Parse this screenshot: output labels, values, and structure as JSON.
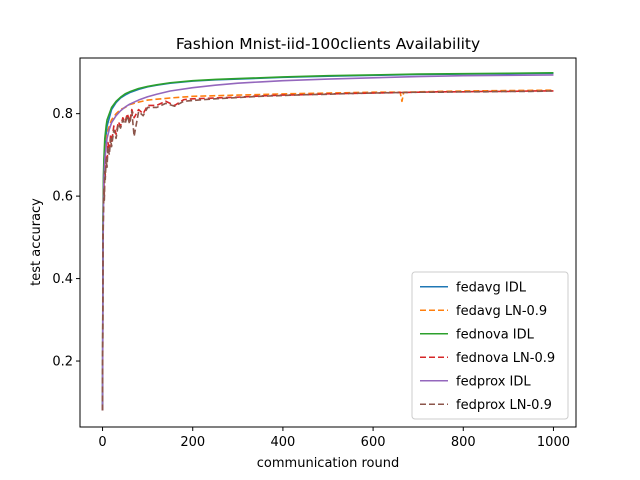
{
  "chart_data": {
    "type": "line",
    "title": "Fashion Mnist-iid-100clients Availability",
    "xlabel": "communication round",
    "ylabel": "test accuracy",
    "xlim": [
      -50,
      1050
    ],
    "ylim": [
      0.04,
      0.935
    ],
    "xticks": [
      0,
      200,
      400,
      600,
      800,
      1000
    ],
    "yticks": [
      0.2,
      0.4,
      0.6,
      0.8
    ],
    "xtick_labels": [
      "0",
      "200",
      "400",
      "600",
      "800",
      "1000"
    ],
    "ytick_labels": [
      "0.2",
      "0.4",
      "0.6",
      "0.8"
    ],
    "grid": false,
    "legend_position": "lower-right",
    "series": [
      {
        "name": "fedavg IDL",
        "color": "#1f77b4",
        "dash": "solid",
        "x": [
          0,
          1,
          2,
          3,
          5,
          8,
          10,
          15,
          20,
          30,
          40,
          50,
          60,
          80,
          100,
          120,
          150,
          200,
          250,
          300,
          350,
          400,
          500,
          600,
          700,
          800,
          900,
          1000
        ],
        "y": [
          0.08,
          0.5,
          0.62,
          0.67,
          0.72,
          0.75,
          0.77,
          0.79,
          0.81,
          0.827,
          0.838,
          0.845,
          0.851,
          0.859,
          0.865,
          0.869,
          0.874,
          0.879,
          0.882,
          0.884,
          0.886,
          0.888,
          0.891,
          0.893,
          0.895,
          0.896,
          0.897,
          0.898
        ]
      },
      {
        "name": "fedavg LN-0.9",
        "color": "#ff7f0e",
        "dash": "dashed",
        "x": [
          0,
          1,
          2,
          3,
          5,
          8,
          10,
          15,
          20,
          30,
          40,
          50,
          60,
          70,
          80,
          100,
          150,
          200,
          300,
          400,
          500,
          600,
          660,
          664,
          668,
          700,
          800,
          900,
          1000
        ],
        "y": [
          0.08,
          0.48,
          0.6,
          0.66,
          0.7,
          0.73,
          0.75,
          0.77,
          0.785,
          0.8,
          0.81,
          0.815,
          0.822,
          0.825,
          0.828,
          0.833,
          0.838,
          0.842,
          0.845,
          0.848,
          0.85,
          0.852,
          0.852,
          0.83,
          0.852,
          0.853,
          0.855,
          0.856,
          0.857
        ]
      },
      {
        "name": "fednova IDL",
        "color": "#2ca02c",
        "dash": "solid",
        "x": [
          0,
          1,
          2,
          3,
          5,
          8,
          10,
          15,
          20,
          30,
          40,
          50,
          60,
          80,
          100,
          120,
          150,
          200,
          250,
          300,
          350,
          400,
          500,
          600,
          700,
          800,
          900,
          1000
        ],
        "y": [
          0.08,
          0.55,
          0.65,
          0.69,
          0.74,
          0.77,
          0.785,
          0.8,
          0.815,
          0.83,
          0.84,
          0.848,
          0.853,
          0.861,
          0.866,
          0.87,
          0.875,
          0.88,
          0.883,
          0.885,
          0.887,
          0.889,
          0.892,
          0.894,
          0.896,
          0.897,
          0.898,
          0.899
        ]
      },
      {
        "name": "fednova LN-0.9",
        "color": "#d62728",
        "dash": "dashed",
        "x": [
          0,
          1,
          2,
          3,
          4,
          5,
          6,
          8,
          10,
          12,
          15,
          18,
          20,
          25,
          30,
          35,
          40,
          45,
          50,
          55,
          60,
          65,
          70,
          80,
          90,
          100,
          120,
          140,
          160,
          180,
          200,
          250,
          300,
          350,
          400,
          450,
          500,
          550,
          600,
          650,
          700,
          750,
          800,
          850,
          900,
          950,
          1000
        ],
        "y": [
          0.08,
          0.5,
          0.58,
          0.64,
          0.6,
          0.68,
          0.65,
          0.7,
          0.68,
          0.73,
          0.71,
          0.75,
          0.73,
          0.77,
          0.75,
          0.78,
          0.77,
          0.79,
          0.78,
          0.8,
          0.78,
          0.81,
          0.79,
          0.81,
          0.8,
          0.82,
          0.82,
          0.83,
          0.82,
          0.834,
          0.836,
          0.838,
          0.84,
          0.843,
          0.845,
          0.846,
          0.848,
          0.849,
          0.85,
          0.851,
          0.852,
          0.853,
          0.853,
          0.854,
          0.854,
          0.855,
          0.855
        ]
      },
      {
        "name": "fedprox IDL",
        "color": "#9467bd",
        "dash": "solid",
        "x": [
          0,
          1,
          2,
          3,
          5,
          8,
          10,
          15,
          20,
          30,
          40,
          50,
          60,
          80,
          100,
          120,
          150,
          200,
          250,
          300,
          350,
          400,
          500,
          600,
          700,
          800,
          900,
          1000
        ],
        "y": [
          0.08,
          0.45,
          0.58,
          0.64,
          0.69,
          0.72,
          0.74,
          0.762,
          0.778,
          0.795,
          0.807,
          0.816,
          0.823,
          0.833,
          0.841,
          0.847,
          0.855,
          0.863,
          0.869,
          0.874,
          0.877,
          0.88,
          0.884,
          0.887,
          0.89,
          0.892,
          0.893,
          0.894
        ]
      },
      {
        "name": "fedprox LN-0.9",
        "color": "#8c564b",
        "dash": "dashed",
        "x": [
          0,
          1,
          2,
          3,
          4,
          5,
          6,
          8,
          10,
          12,
          15,
          18,
          20,
          25,
          30,
          35,
          40,
          45,
          50,
          55,
          60,
          65,
          70,
          80,
          90,
          100,
          120,
          140,
          160,
          180,
          200,
          250,
          300,
          350,
          400,
          450,
          500,
          550,
          600,
          650,
          700,
          750,
          800,
          850,
          900,
          950,
          1000
        ],
        "y": [
          0.08,
          0.48,
          0.56,
          0.62,
          0.59,
          0.66,
          0.64,
          0.69,
          0.67,
          0.72,
          0.7,
          0.74,
          0.72,
          0.76,
          0.74,
          0.775,
          0.765,
          0.785,
          0.775,
          0.795,
          0.775,
          0.805,
          0.745,
          0.805,
          0.795,
          0.815,
          0.815,
          0.825,
          0.818,
          0.83,
          0.832,
          0.836,
          0.839,
          0.842,
          0.844,
          0.846,
          0.847,
          0.849,
          0.85,
          0.851,
          0.852,
          0.852,
          0.853,
          0.853,
          0.854,
          0.854,
          0.855
        ]
      }
    ]
  }
}
